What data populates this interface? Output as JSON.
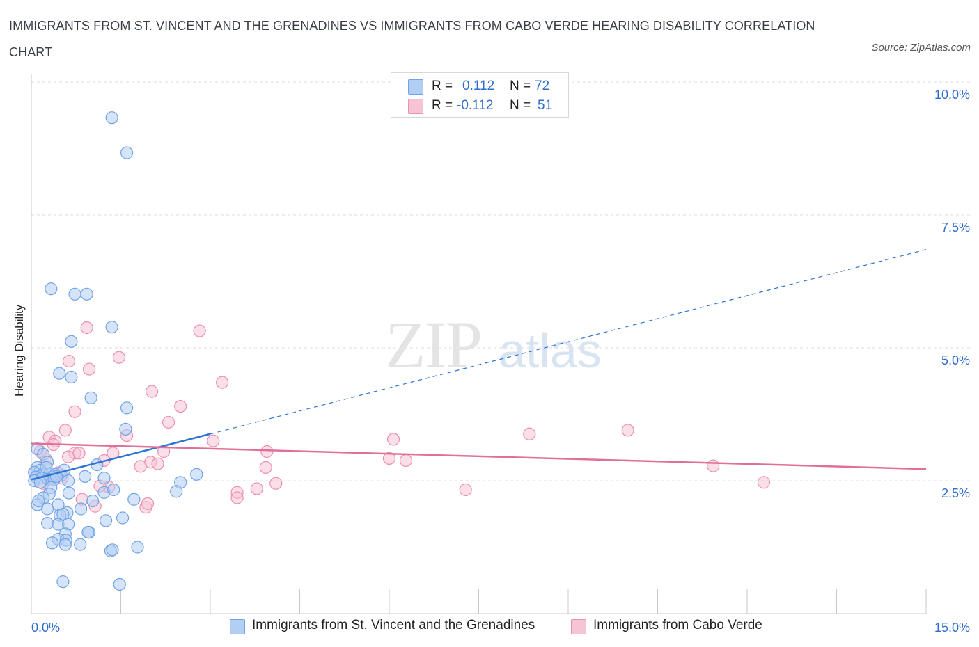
{
  "title": "IMMIGRANTS FROM ST. VINCENT AND THE GRENADINES VS IMMIGRANTS FROM CABO VERDE HEARING DISABILITY CORRELATION CHART",
  "source": "Source: ZipAtlas.com",
  "colors": {
    "blue": "#6fa3e6",
    "blue_fill": "#b3cef4",
    "blue_line": "#2d73d2",
    "pink": "#ec8fae",
    "pink_fill": "#f6c4d5",
    "pink_line": "#e0709a",
    "tick_label": "#2f6ecf"
  },
  "legend_top": [
    {
      "r_label": "R =",
      "r_value": "0.112",
      "n_label": "N =",
      "n_value": "72"
    },
    {
      "r_label": "R =",
      "r_value": "-0.112",
      "n_label": "N =",
      "n_value": "51"
    }
  ],
  "legend_bottom": [
    {
      "label": "Immigrants from St. Vincent and the Grenadines"
    },
    {
      "label": "Immigrants from Cabo Verde"
    }
  ],
  "watermark": {
    "zip": "ZIP",
    "atlas": "atlas"
  },
  "chart_data": {
    "type": "scatter",
    "title": "IMMIGRANTS FROM ST. VINCENT AND THE GRENADINES VS IMMIGRANTS FROM CABO VERDE HEARING DISABILITY CORRELATION CHART",
    "xlabel": "",
    "ylabel": "Hearing Disability",
    "xlim": [
      0,
      15
    ],
    "ylim": [
      0,
      10
    ],
    "x_tick_labels": [
      {
        "value": 0,
        "label": "0.0%"
      },
      {
        "value": 15,
        "label": "15.0%"
      }
    ],
    "y_tick_labels": [
      {
        "value": 2.5,
        "label": "2.5%"
      },
      {
        "value": 5.0,
        "label": "5.0%"
      },
      {
        "value": 7.5,
        "label": "7.5%"
      },
      {
        "value": 10.0,
        "label": "10.0%"
      }
    ],
    "x_minor_ticks": [
      0,
      1.5,
      3,
      4.5,
      6,
      7.5,
      9,
      10.5,
      12,
      13.5,
      15
    ],
    "series": [
      {
        "name": "Immigrants from St. Vincent and the Grenadines",
        "color": "blue",
        "R": 0.112,
        "N": 72,
        "trend": {
          "x": [
            0.0,
            3.0,
            15.0
          ],
          "y": [
            2.52,
            3.38,
            6.85
          ],
          "solid_until": 3.0
        },
        "points": [
          [
            1.35,
            9.33
          ],
          [
            1.6,
            8.67
          ],
          [
            0.33,
            6.11
          ],
          [
            0.73,
            6.01
          ],
          [
            0.93,
            6.01
          ],
          [
            1.35,
            5.39
          ],
          [
            0.67,
            5.12
          ],
          [
            0.47,
            4.52
          ],
          [
            0.67,
            4.45
          ],
          [
            1.0,
            4.06
          ],
          [
            1.6,
            3.87
          ],
          [
            1.58,
            3.47
          ],
          [
            0.1,
            3.1
          ],
          [
            0.2,
            3.0
          ],
          [
            0.27,
            2.85
          ],
          [
            0.1,
            2.75
          ],
          [
            0.15,
            2.7
          ],
          [
            0.05,
            2.66
          ],
          [
            0.2,
            2.62
          ],
          [
            0.3,
            2.62
          ],
          [
            0.4,
            2.62
          ],
          [
            0.5,
            2.6
          ],
          [
            0.08,
            2.57
          ],
          [
            0.18,
            2.55
          ],
          [
            0.28,
            2.53
          ],
          [
            0.38,
            2.52
          ],
          [
            0.05,
            2.5
          ],
          [
            0.15,
            2.47
          ],
          [
            0.33,
            2.37
          ],
          [
            0.62,
            2.5
          ],
          [
            1.1,
            2.8
          ],
          [
            0.9,
            2.58
          ],
          [
            1.22,
            2.55
          ],
          [
            1.22,
            2.28
          ],
          [
            1.38,
            2.33
          ],
          [
            0.3,
            2.25
          ],
          [
            0.63,
            2.27
          ],
          [
            0.2,
            2.18
          ],
          [
            0.1,
            2.05
          ],
          [
            0.27,
            1.97
          ],
          [
            0.45,
            2.05
          ],
          [
            1.03,
            2.12
          ],
          [
            0.83,
            1.97
          ],
          [
            1.72,
            2.15
          ],
          [
            0.6,
            1.9
          ],
          [
            0.48,
            1.85
          ],
          [
            0.53,
            1.87
          ],
          [
            0.27,
            1.7
          ],
          [
            0.45,
            1.68
          ],
          [
            0.62,
            1.68
          ],
          [
            1.25,
            1.75
          ],
          [
            1.53,
            1.8
          ],
          [
            0.57,
            1.5
          ],
          [
            0.45,
            1.4
          ],
          [
            0.35,
            1.33
          ],
          [
            0.97,
            1.53
          ],
          [
            0.95,
            1.53
          ],
          [
            0.58,
            1.38
          ],
          [
            0.57,
            1.3
          ],
          [
            0.82,
            1.3
          ],
          [
            1.33,
            1.18
          ],
          [
            1.36,
            1.2
          ],
          [
            1.78,
            1.25
          ],
          [
            0.53,
            0.6
          ],
          [
            1.48,
            0.55
          ],
          [
            2.77,
            2.62
          ],
          [
            2.5,
            2.47
          ],
          [
            2.43,
            2.3
          ],
          [
            0.12,
            2.12
          ],
          [
            0.55,
            2.7
          ],
          [
            0.42,
            2.58
          ],
          [
            0.25,
            2.75
          ]
        ]
      },
      {
        "name": "Immigrants from Cabo Verde",
        "color": "pink",
        "R": -0.112,
        "N": 51,
        "trend": {
          "x": [
            0.0,
            15.0
          ],
          "y": [
            3.2,
            2.72
          ]
        },
        "points": [
          [
            0.93,
            5.38
          ],
          [
            2.82,
            5.32
          ],
          [
            0.63,
            4.75
          ],
          [
            0.97,
            4.6
          ],
          [
            1.47,
            4.82
          ],
          [
            3.2,
            4.35
          ],
          [
            2.02,
            4.18
          ],
          [
            2.5,
            3.9
          ],
          [
            0.73,
            3.8
          ],
          [
            2.3,
            3.6
          ],
          [
            0.57,
            3.45
          ],
          [
            1.6,
            3.35
          ],
          [
            0.3,
            3.32
          ],
          [
            0.4,
            3.25
          ],
          [
            0.37,
            3.18
          ],
          [
            0.73,
            3.02
          ],
          [
            1.37,
            3.02
          ],
          [
            2.22,
            3.05
          ],
          [
            3.05,
            3.25
          ],
          [
            3.95,
            3.05
          ],
          [
            0.62,
            2.95
          ],
          [
            1.22,
            2.88
          ],
          [
            2.0,
            2.85
          ],
          [
            2.12,
            2.82
          ],
          [
            1.83,
            2.77
          ],
          [
            0.45,
            2.65
          ],
          [
            0.52,
            2.55
          ],
          [
            1.3,
            2.38
          ],
          [
            1.15,
            2.4
          ],
          [
            0.2,
            2.45
          ],
          [
            3.93,
            2.75
          ],
          [
            4.1,
            2.45
          ],
          [
            3.78,
            2.35
          ],
          [
            3.45,
            2.28
          ],
          [
            3.45,
            2.18
          ],
          [
            0.85,
            2.15
          ],
          [
            1.07,
            2.02
          ],
          [
            1.92,
            2.0
          ],
          [
            1.95,
            2.07
          ],
          [
            0.25,
            2.9
          ],
          [
            6.07,
            3.28
          ],
          [
            6.0,
            2.92
          ],
          [
            6.28,
            2.88
          ],
          [
            8.35,
            3.38
          ],
          [
            10.0,
            3.45
          ],
          [
            7.28,
            2.33
          ],
          [
            11.43,
            2.78
          ],
          [
            12.28,
            2.47
          ],
          [
            0.8,
            3.02
          ],
          [
            0.15,
            3.05
          ],
          [
            0.05,
            2.65
          ]
        ]
      }
    ]
  }
}
